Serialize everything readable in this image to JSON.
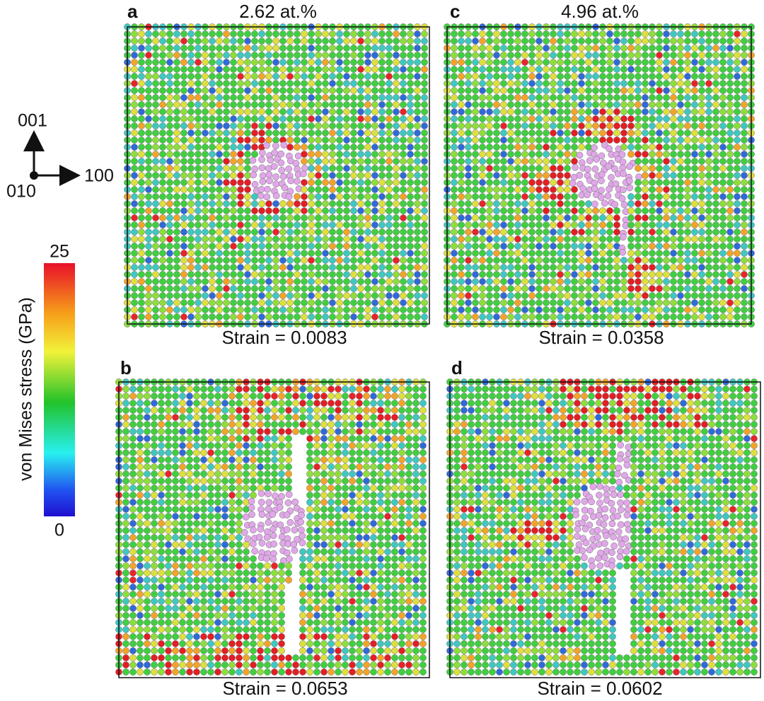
{
  "panels": [
    {
      "label": "a",
      "title": "2.62 at.%",
      "strain": "Strain = 0.0083"
    },
    {
      "label": "b",
      "strain": "Strain = 0.0653"
    },
    {
      "label": "c",
      "title": "4.96 at.%",
      "strain": "Strain = 0.0358"
    },
    {
      "label": "d",
      "strain": "Strain = 0.0602"
    }
  ],
  "axes": {
    "up": "001",
    "right": "100",
    "out": "010"
  },
  "colorbar": {
    "label": "von Mises stress (GPa)",
    "max": "25",
    "min": "0"
  }
}
